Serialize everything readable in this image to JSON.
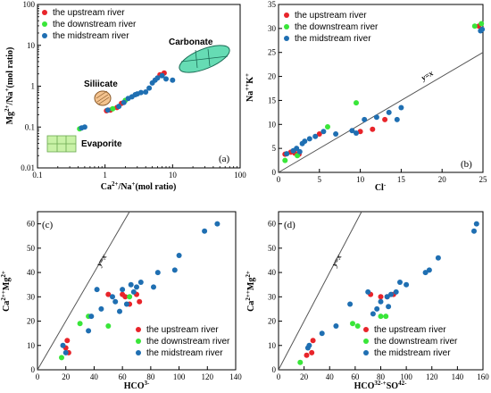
{
  "chart_data": [
    {
      "panel": "(a)",
      "type": "scatter",
      "xscale": "log",
      "yscale": "log",
      "xlim": [
        0.1,
        100
      ],
      "ylim": [
        0.01,
        100
      ],
      "xlabel": "Ca2+/Na+(mol ratio)",
      "ylabel": "Mg2+/Na+(mol ratio)",
      "xticks": [
        "0.1",
        "1",
        "10",
        "100"
      ],
      "yticks": [
        "0.01",
        "0.1",
        "1",
        "10",
        "100"
      ],
      "legend": "top-left",
      "annotations": [
        "Carbonate",
        "Siliicate",
        "Evaporite"
      ],
      "series": [
        {
          "name": "the upstream river",
          "color": "#e8242a",
          "points": [
            [
              1.05,
              0.25
            ],
            [
              1.2,
              0.26
            ],
            [
              1.5,
              0.3
            ],
            [
              1.75,
              0.38
            ],
            [
              6.5,
              1.9
            ],
            [
              7.5,
              2.1
            ]
          ]
        },
        {
          "name": "the downstream river",
          "color": "#39e639",
          "points": [
            [
              0.42,
              0.09
            ],
            [
              1.3,
              0.28
            ],
            [
              2.0,
              0.45
            ]
          ]
        },
        {
          "name": "the midstream river",
          "color": "#1f6fb2",
          "points": [
            [
              0.45,
              0.095
            ],
            [
              0.5,
              0.1
            ],
            [
              1.1,
              0.26
            ],
            [
              1.6,
              0.32
            ],
            [
              1.9,
              0.4
            ],
            [
              2.2,
              0.5
            ],
            [
              2.5,
              0.55
            ],
            [
              2.8,
              0.62
            ],
            [
              3.0,
              0.65
            ],
            [
              3.4,
              0.7
            ],
            [
              4.0,
              0.72
            ],
            [
              4.5,
              0.9
            ],
            [
              5.0,
              1.2
            ],
            [
              5.5,
              1.4
            ],
            [
              6.0,
              1.6
            ],
            [
              7.0,
              1.8
            ],
            [
              8.0,
              1.5
            ],
            [
              10.0,
              1.4
            ]
          ]
        }
      ]
    },
    {
      "panel": "(b)",
      "type": "scatter",
      "xlim": [
        0,
        25
      ],
      "ylim": [
        0,
        35
      ],
      "xlabel": "Cl-",
      "ylabel": "Na++K+",
      "xticks": [
        "0",
        "5",
        "10",
        "15",
        "20",
        "25"
      ],
      "yticks": [
        "0",
        "5",
        "10",
        "15",
        "20",
        "25",
        "30",
        "35"
      ],
      "line_label": "y=x",
      "legend": "top-left",
      "series": [
        {
          "name": "the upstream river",
          "color": "#e8242a",
          "points": [
            [
              0.8,
              3.8
            ],
            [
              1.5,
              4.2
            ],
            [
              2.0,
              4.0
            ],
            [
              2.5,
              3.8
            ],
            [
              5.0,
              8.0
            ],
            [
              10.0,
              8.5
            ],
            [
              11.5,
              9.0
            ],
            [
              13.0,
              11.0
            ],
            [
              24.5,
              30.5
            ]
          ]
        },
        {
          "name": "the downstream river",
          "color": "#39e639",
          "points": [
            [
              0.8,
              2.5
            ],
            [
              2.3,
              3.5
            ],
            [
              6.0,
              9.5
            ],
            [
              9.5,
              14.5
            ],
            [
              24.0,
              30.5
            ],
            [
              24.8,
              31.0
            ]
          ]
        },
        {
          "name": "the midstream river",
          "color": "#1f6fb2",
          "points": [
            [
              1.0,
              3.9
            ],
            [
              1.8,
              4.5
            ],
            [
              2.2,
              5.0
            ],
            [
              2.6,
              4.3
            ],
            [
              2.9,
              6.0
            ],
            [
              3.2,
              6.5
            ],
            [
              3.8,
              7.0
            ],
            [
              4.5,
              7.5
            ],
            [
              5.5,
              8.5
            ],
            [
              7.0,
              8.0
            ],
            [
              9.0,
              8.7
            ],
            [
              9.5,
              8.2
            ],
            [
              10.5,
              11.0
            ],
            [
              12.0,
              11.5
            ],
            [
              13.5,
              12.5
            ],
            [
              14.5,
              11.0
            ],
            [
              15.0,
              13.5
            ],
            [
              24.7,
              29.5
            ],
            [
              24.9,
              29.8
            ]
          ]
        }
      ]
    },
    {
      "panel": "(c)",
      "type": "scatter",
      "xlim": [
        0,
        140
      ],
      "ylim": [
        0,
        65
      ],
      "xlabel": "HCO3-",
      "ylabel": "Ca2++Mg2+",
      "xticks": [
        "0",
        "20",
        "40",
        "60",
        "80",
        "100",
        "120",
        "140"
      ],
      "yticks": [
        "0",
        "10",
        "20",
        "30",
        "40",
        "50",
        "60"
      ],
      "line_label": "y=x",
      "legend": "bottom-right",
      "series": [
        {
          "name": "the upstream river",
          "color": "#e8242a",
          "points": [
            [
              20,
              9
            ],
            [
              21,
              12
            ],
            [
              22,
              7
            ],
            [
              50,
              31
            ],
            [
              60,
              31
            ],
            [
              62,
              30
            ],
            [
              65,
              27
            ],
            [
              70,
              31
            ],
            [
              72,
              28
            ]
          ]
        },
        {
          "name": "the downstream river",
          "color": "#39e639",
          "points": [
            [
              17,
              5
            ],
            [
              30,
              19
            ],
            [
              36,
              22
            ],
            [
              50,
              18
            ],
            [
              65,
              30
            ]
          ]
        },
        {
          "name": "the midstream river",
          "color": "#1f6fb2",
          "points": [
            [
              18,
              10
            ],
            [
              20,
              7
            ],
            [
              36,
              16
            ],
            [
              38,
              22
            ],
            [
              42,
              33
            ],
            [
              45,
              25
            ],
            [
              53,
              30
            ],
            [
              55,
              28
            ],
            [
              58,
              24
            ],
            [
              60,
              33
            ],
            [
              63,
              27
            ],
            [
              66,
              35
            ],
            [
              68,
              32
            ],
            [
              70,
              34
            ],
            [
              73,
              36
            ],
            [
              82,
              34
            ],
            [
              85,
              40
            ],
            [
              97,
              41
            ],
            [
              100,
              47
            ],
            [
              118,
              57
            ],
            [
              127,
              60
            ]
          ]
        }
      ]
    },
    {
      "panel": "(d)",
      "type": "scatter",
      "xlim": [
        0,
        160
      ],
      "ylim": [
        0,
        65
      ],
      "xlabel": "HCO32-+SO42-",
      "ylabel": "Ca2++Mg2+",
      "xticks": [
        "0",
        "20",
        "40",
        "60",
        "80",
        "100",
        "120",
        "140",
        "160"
      ],
      "yticks": [
        "0",
        "10",
        "20",
        "30",
        "40",
        "50",
        "60"
      ],
      "line_label": "y=x",
      "legend": "bottom-right",
      "series": [
        {
          "name": "the upstream river",
          "color": "#e8242a",
          "points": [
            [
              22,
              6
            ],
            [
              26,
              7
            ],
            [
              27,
              12
            ],
            [
              72,
              31
            ],
            [
              80,
              30
            ],
            [
              85,
              30
            ],
            [
              90,
              31
            ]
          ]
        },
        {
          "name": "the downstream river",
          "color": "#39e639",
          "points": [
            [
              17,
              3
            ],
            [
              58,
              19
            ],
            [
              62,
              18
            ],
            [
              80,
              22
            ],
            [
              84,
              22
            ]
          ]
        },
        {
          "name": "the midstream river",
          "color": "#1f6fb2",
          "points": [
            [
              23,
              9
            ],
            [
              24,
              10
            ],
            [
              34,
              15
            ],
            [
              45,
              18
            ],
            [
              56,
              27
            ],
            [
              70,
              32
            ],
            [
              74,
              23
            ],
            [
              77,
              25
            ],
            [
              80,
              28
            ],
            [
              85,
              30
            ],
            [
              86,
              26
            ],
            [
              88,
              31
            ],
            [
              92,
              32
            ],
            [
              95,
              36
            ],
            [
              100,
              35
            ],
            [
              115,
              40
            ],
            [
              118,
              41
            ],
            [
              125,
              46
            ],
            [
              153,
              57
            ],
            [
              155,
              60
            ]
          ]
        }
      ]
    }
  ],
  "legend_labels": [
    "the upstream river",
    "the downstream river",
    "the midstream river"
  ]
}
